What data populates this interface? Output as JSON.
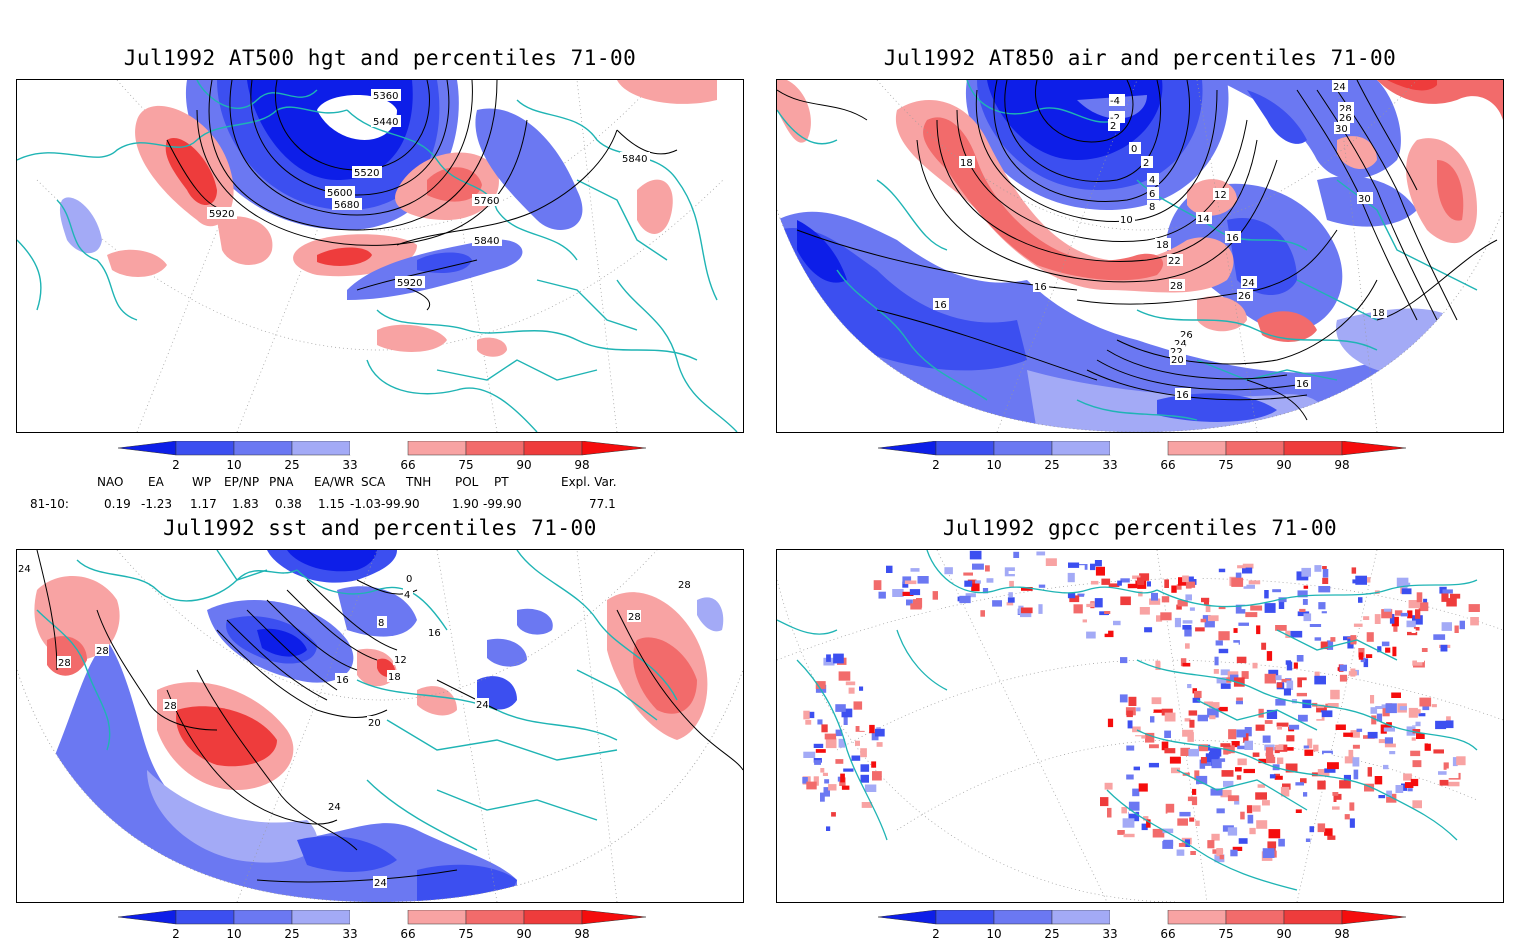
{
  "panels": [
    {
      "id": "hgt500",
      "title": "Jul1992 AT500 hgt and percentiles 71-00",
      "contour_labels": [
        "5360",
        "5440",
        "5520",
        "5600",
        "5680",
        "5760",
        "5840",
        "5920",
        "5840",
        "5920"
      ]
    },
    {
      "id": "air850",
      "title": "Jul1992 AT850 air and percentiles 71-00",
      "contour_labels": [
        "-4",
        "-2",
        "2",
        "0",
        "2",
        "4",
        "6",
        "8",
        "10",
        "12",
        "14",
        "16",
        "18",
        "22",
        "24",
        "26",
        "28",
        "26",
        "24",
        "22",
        "20",
        "18",
        "16",
        "16",
        "16",
        "16",
        "30",
        "28",
        "26",
        "24",
        "30",
        "18"
      ]
    },
    {
      "id": "sst",
      "title": "Jul1992 sst and percentiles 71-00",
      "contour_labels": [
        "24",
        "28",
        "28",
        "28",
        "0",
        "4",
        "8",
        "12",
        "16",
        "16",
        "18",
        "20",
        "24",
        "24",
        "28",
        "28",
        "24"
      ]
    },
    {
      "id": "gpcc",
      "title": "Jul1992 gpcc percentiles 71-00",
      "contour_labels": []
    }
  ],
  "colorbar": {
    "labels": [
      "2",
      "10",
      "25",
      "33",
      "66",
      "75",
      "90",
      "98"
    ],
    "colors": [
      "#0d1ee8",
      "#3c4ff0",
      "#6b78f2",
      "#a3aaf6",
      "#ffffff",
      "#f8a3a3",
      "#f26b6b",
      "#ee3c3c",
      "#f50d0d"
    ]
  },
  "indices": {
    "headers": [
      "NAO",
      "EA",
      "WP",
      "EP/NP",
      "PNA",
      "EA/WR",
      "SCA",
      "TNH",
      "POL",
      "PT",
      "Expl. Var."
    ],
    "row_label": "81-10:",
    "values": [
      "0.19",
      "-1.23",
      "1.17",
      "1.83",
      "0.38",
      "1.15",
      "-1.03",
      "-99.90",
      "1.90",
      "-99.90",
      "77.1"
    ]
  }
}
